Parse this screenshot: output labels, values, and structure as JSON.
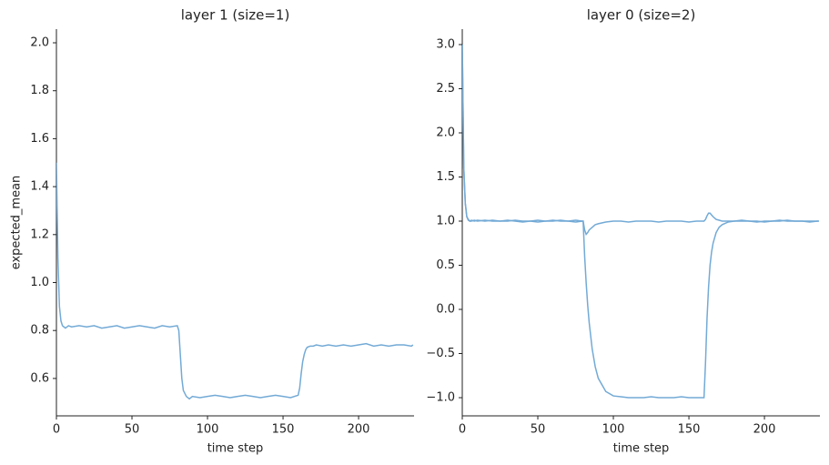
{
  "chart_data": [
    {
      "type": "line",
      "title": "layer 1 (size=1)",
      "xlabel": "time step",
      "ylabel": "expected_mean",
      "x": [
        0,
        1,
        2,
        3,
        4,
        5,
        6,
        8,
        10,
        15,
        20,
        25,
        30,
        35,
        40,
        45,
        50,
        55,
        60,
        65,
        70,
        75,
        80,
        81,
        82,
        83,
        84,
        86,
        88,
        90,
        95,
        100,
        105,
        110,
        115,
        120,
        125,
        130,
        135,
        140,
        145,
        150,
        155,
        160,
        161,
        162,
        163,
        164,
        165,
        166,
        168,
        170,
        172,
        176,
        180,
        185,
        190,
        195,
        200,
        205,
        210,
        215,
        220,
        225,
        230,
        235,
        236
      ],
      "series": [
        {
          "color": "#73aad6",
          "values": [
            1.5,
            1.1,
            0.9,
            0.84,
            0.82,
            0.815,
            0.81,
            0.82,
            0.815,
            0.82,
            0.815,
            0.82,
            0.81,
            0.815,
            0.82,
            0.81,
            0.815,
            0.82,
            0.815,
            0.81,
            0.82,
            0.815,
            0.82,
            0.8,
            0.7,
            0.6,
            0.55,
            0.525,
            0.515,
            0.525,
            0.52,
            0.525,
            0.53,
            0.525,
            0.52,
            0.525,
            0.53,
            0.525,
            0.52,
            0.525,
            0.53,
            0.525,
            0.52,
            0.53,
            0.56,
            0.62,
            0.67,
            0.7,
            0.72,
            0.73,
            0.735,
            0.735,
            0.74,
            0.735,
            0.74,
            0.735,
            0.74,
            0.735,
            0.74,
            0.745,
            0.735,
            0.74,
            0.735,
            0.74,
            0.74,
            0.735,
            0.74
          ]
        }
      ],
      "xlim": [
        0,
        236.7
      ],
      "xticks": [
        0,
        50,
        100,
        150,
        200
      ],
      "ylim": [
        0.444,
        2.057
      ],
      "yticks": [
        0.6,
        0.8,
        {
          "value": 1,
          "label": "1.0"
        },
        1.2,
        1.4,
        1.6,
        1.8,
        {
          "value": 2,
          "label": "2.0"
        }
      ]
    },
    {
      "type": "line",
      "title": "layer 0 (size=2)",
      "xlabel": "time step",
      "x": [
        0,
        1,
        2,
        3,
        4,
        5,
        6,
        8,
        10,
        15,
        20,
        25,
        30,
        35,
        40,
        45,
        50,
        55,
        60,
        65,
        70,
        75,
        80,
        81,
        82,
        83,
        84,
        86,
        88,
        90,
        95,
        100,
        105,
        110,
        115,
        120,
        125,
        130,
        135,
        140,
        145,
        150,
        155,
        160,
        161,
        162,
        163,
        164,
        165,
        166,
        168,
        170,
        172,
        176,
        180,
        185,
        190,
        195,
        200,
        205,
        210,
        215,
        220,
        225,
        230,
        235,
        236
      ],
      "series": [
        {
          "color": "#73aad6",
          "values": [
            3.0,
            1.6,
            1.2,
            1.05,
            1.01,
            1.0,
            1.0,
            1.01,
            1.0,
            1.01,
            1.0,
            1.0,
            1.01,
            1.0,
            0.99,
            1.0,
            1.01,
            1.0,
            1.0,
            1.01,
            1.0,
            0.99,
            1.0,
            0.9,
            0.85,
            0.87,
            0.9,
            0.93,
            0.96,
            0.97,
            0.99,
            1.0,
            1.0,
            0.99,
            1.0,
            1.0,
            1.0,
            0.99,
            1.0,
            1.0,
            1.0,
            0.99,
            1.0,
            1.0,
            1.02,
            1.06,
            1.09,
            1.09,
            1.07,
            1.05,
            1.02,
            1.01,
            1.0,
            1.0,
            1.0,
            1.01,
            1.0,
            1.0,
            0.99,
            1.0,
            1.01,
            1.0,
            1.0,
            1.0,
            0.99,
            1.0,
            1.0
          ]
        },
        {
          "color": "#73aad6",
          "values": [
            3.0,
            1.6,
            1.2,
            1.05,
            1.02,
            1.0,
            1.01,
            1.0,
            1.01,
            1.0,
            1.01,
            1.0,
            1.0,
            1.01,
            1.0,
            1.0,
            0.99,
            1.0,
            1.01,
            1.0,
            1.0,
            1.01,
            1.0,
            0.6,
            0.3,
            0.05,
            -0.15,
            -0.45,
            -0.65,
            -0.78,
            -0.93,
            -0.98,
            -0.99,
            -1.0,
            -1.0,
            -1.0,
            -0.99,
            -1.0,
            -1.0,
            -1.0,
            -0.99,
            -1.0,
            -1.0,
            -1.0,
            -0.6,
            -0.1,
            0.25,
            0.5,
            0.65,
            0.75,
            0.87,
            0.93,
            0.96,
            0.99,
            1.0,
            1.0,
            1.0,
            0.99,
            1.0,
            1.0,
            1.0,
            1.01,
            1.0,
            1.0,
            1.0,
            1.0,
            1.0
          ]
        }
      ],
      "xlim": [
        0,
        236.7
      ],
      "xticks": [
        0,
        50,
        100,
        150,
        200
      ],
      "ylim": [
        -1.206,
        3.175
      ],
      "yticks": [
        {
          "value": -1,
          "label": "−1.0"
        },
        {
          "value": -0.5,
          "label": "−0.5"
        },
        {
          "value": 0,
          "label": "0.0"
        },
        0.5,
        {
          "value": 1,
          "label": "1.0"
        },
        1.5,
        {
          "value": 2,
          "label": "2.0"
        },
        2.5,
        {
          "value": 3,
          "label": "3.0"
        }
      ]
    }
  ]
}
